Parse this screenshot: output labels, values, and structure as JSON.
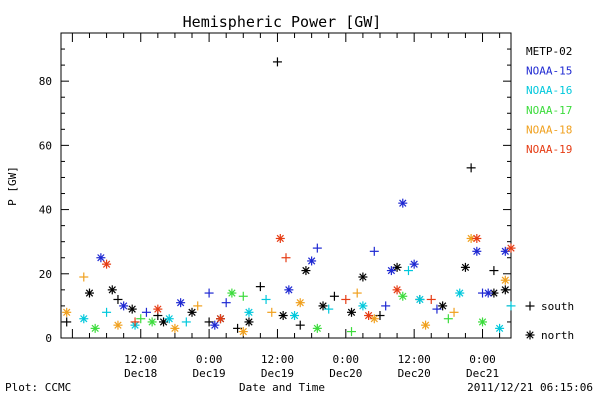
{
  "chart_data": {
    "type": "scatter",
    "title": "Hemispheric Power [GW]",
    "ylabel": "P [GW]",
    "xlabel": "Date and Time",
    "x_range": [
      "2011-12-17 22:00",
      "2011-12-21 05:00"
    ],
    "ylim": [
      0,
      95
    ],
    "y_ticks": [
      0,
      20,
      40,
      60,
      80
    ],
    "x_ticks": [
      {
        "t": "2011-12-18 12:00",
        "time": "12:00",
        "day": "Dec18"
      },
      {
        "t": "2011-12-19 00:00",
        "time": "0:00",
        "day": "Dec19"
      },
      {
        "t": "2011-12-19 12:00",
        "time": "12:00",
        "day": "Dec19"
      },
      {
        "t": "2011-12-20 00:00",
        "time": "0:00",
        "day": "Dec20"
      },
      {
        "t": "2011-12-20 12:00",
        "time": "12:00",
        "day": "Dec20"
      },
      {
        "t": "2011-12-21 00:00",
        "time": "0:00",
        "day": "Dec21"
      }
    ],
    "markers": {
      "south": "+",
      "north": "*"
    },
    "marker_legend": [
      {
        "symbol": "+",
        "label": "south"
      },
      {
        "symbol": "*",
        "label": "north"
      }
    ],
    "series": [
      {
        "name": "METP-02",
        "color": "#000000",
        "points": [
          [
            "2011-12-18 03:00",
            14,
            "north"
          ],
          [
            "2011-12-18 07:00",
            15,
            "north"
          ],
          [
            "2011-12-18 10:30",
            9,
            "north"
          ],
          [
            "2011-12-18 16:00",
            5,
            "north"
          ],
          [
            "2011-12-18 21:00",
            8,
            "north"
          ],
          [
            "2011-12-19 02:00",
            6,
            "north"
          ],
          [
            "2011-12-19 07:00",
            5,
            "north"
          ],
          [
            "2011-12-19 13:00",
            7,
            "north"
          ],
          [
            "2011-12-19 17:00",
            21,
            "north"
          ],
          [
            "2011-12-19 20:00",
            10,
            "north"
          ],
          [
            "2011-12-20 01:00",
            8,
            "north"
          ],
          [
            "2011-12-20 03:00",
            19,
            "north"
          ],
          [
            "2011-12-20 09:00",
            22,
            "north"
          ],
          [
            "2011-12-20 17:00",
            10,
            "north"
          ],
          [
            "2011-12-20 21:00",
            22,
            "north"
          ],
          [
            "2011-12-21 02:00",
            14,
            "north"
          ],
          [
            "2011-12-21 04:00",
            15,
            "north"
          ],
          [
            "2011-12-17 23:00",
            5,
            "south"
          ],
          [
            "2011-12-18 08:00",
            12,
            "south"
          ],
          [
            "2011-12-18 15:00",
            7,
            "south"
          ],
          [
            "2011-12-19 00:00",
            5,
            "south"
          ],
          [
            "2011-12-19 05:00",
            3,
            "south"
          ],
          [
            "2011-12-19 09:00",
            16,
            "south"
          ],
          [
            "2011-12-19 12:00",
            86,
            "south"
          ],
          [
            "2011-12-19 16:00",
            4,
            "south"
          ],
          [
            "2011-12-19 22:00",
            13,
            "south"
          ],
          [
            "2011-12-20 06:00",
            7,
            "south"
          ],
          [
            "2011-12-20 13:00",
            12,
            "south"
          ],
          [
            "2011-12-20 22:00",
            53,
            "south"
          ],
          [
            "2011-12-21 02:00",
            21,
            "south"
          ]
        ]
      },
      {
        "name": "NOAA-15",
        "color": "#1e28d2",
        "points": [
          [
            "2011-12-18 05:00",
            25,
            "north"
          ],
          [
            "2011-12-18 09:00",
            10,
            "north"
          ],
          [
            "2011-12-18 19:00",
            11,
            "north"
          ],
          [
            "2011-12-19 01:00",
            4,
            "north"
          ],
          [
            "2011-12-19 14:00",
            15,
            "north"
          ],
          [
            "2011-12-19 18:00",
            24,
            "north"
          ],
          [
            "2011-12-20 08:00",
            21,
            "north"
          ],
          [
            "2011-12-20 10:00",
            42,
            "north"
          ],
          [
            "2011-12-20 12:00",
            23,
            "north"
          ],
          [
            "2011-12-20 23:00",
            27,
            "north"
          ],
          [
            "2011-12-21 01:00",
            14,
            "north"
          ],
          [
            "2011-12-21 04:00",
            27,
            "north"
          ],
          [
            "2011-12-18 13:00",
            8,
            "south"
          ],
          [
            "2011-12-19 00:00",
            14,
            "south"
          ],
          [
            "2011-12-19 03:00",
            11,
            "south"
          ],
          [
            "2011-12-19 19:00",
            28,
            "south"
          ],
          [
            "2011-12-20 05:00",
            27,
            "south"
          ],
          [
            "2011-12-20 07:00",
            10,
            "south"
          ],
          [
            "2011-12-20 16:00",
            9,
            "south"
          ],
          [
            "2011-12-21 00:00",
            14,
            "south"
          ]
        ]
      },
      {
        "name": "NOAA-16",
        "color": "#00c8dc",
        "points": [
          [
            "2011-12-18 02:00",
            6,
            "north"
          ],
          [
            "2011-12-18 11:00",
            4,
            "north"
          ],
          [
            "2011-12-18 17:00",
            6,
            "north"
          ],
          [
            "2011-12-19 07:00",
            8,
            "north"
          ],
          [
            "2011-12-19 15:00",
            7,
            "north"
          ],
          [
            "2011-12-20 03:00",
            10,
            "north"
          ],
          [
            "2011-12-20 13:00",
            12,
            "north"
          ],
          [
            "2011-12-20 20:00",
            14,
            "north"
          ],
          [
            "2011-12-21 03:00",
            3,
            "north"
          ],
          [
            "2011-12-18 06:00",
            8,
            "south"
          ],
          [
            "2011-12-18 20:00",
            5,
            "south"
          ],
          [
            "2011-12-19 10:00",
            12,
            "south"
          ],
          [
            "2011-12-19 21:00",
            9,
            "south"
          ],
          [
            "2011-12-20 11:00",
            21,
            "south"
          ],
          [
            "2011-12-21 05:00",
            10,
            "south"
          ]
        ]
      },
      {
        "name": "NOAA-17",
        "color": "#3cdc3c",
        "points": [
          [
            "2011-12-18 04:00",
            3,
            "north"
          ],
          [
            "2011-12-18 14:00",
            5,
            "north"
          ],
          [
            "2011-12-19 04:00",
            14,
            "north"
          ],
          [
            "2011-12-19 19:00",
            3,
            "north"
          ],
          [
            "2011-12-20 10:00",
            13,
            "north"
          ],
          [
            "2011-12-21 00:00",
            5,
            "north"
          ],
          [
            "2011-12-18 12:00",
            6,
            "south"
          ],
          [
            "2011-12-19 06:00",
            13,
            "south"
          ],
          [
            "2011-12-20 01:00",
            2,
            "south"
          ],
          [
            "2011-12-20 18:00",
            6,
            "south"
          ]
        ]
      },
      {
        "name": "NOAA-18",
        "color": "#f0a01e",
        "points": [
          [
            "2011-12-17 23:00",
            8,
            "north"
          ],
          [
            "2011-12-18 08:00",
            4,
            "north"
          ],
          [
            "2011-12-18 18:00",
            3,
            "north"
          ],
          [
            "2011-12-19 06:00",
            2,
            "north"
          ],
          [
            "2011-12-19 16:00",
            11,
            "north"
          ],
          [
            "2011-12-20 05:00",
            6,
            "north"
          ],
          [
            "2011-12-20 14:00",
            4,
            "north"
          ],
          [
            "2011-12-20 22:00",
            31,
            "north"
          ],
          [
            "2011-12-21 04:00",
            18,
            "north"
          ],
          [
            "2011-12-18 02:00",
            19,
            "south"
          ],
          [
            "2011-12-18 22:00",
            10,
            "south"
          ],
          [
            "2011-12-19 11:00",
            8,
            "south"
          ],
          [
            "2011-12-20 02:00",
            14,
            "south"
          ],
          [
            "2011-12-20 19:00",
            8,
            "south"
          ]
        ]
      },
      {
        "name": "NOAA-19",
        "color": "#e63c14",
        "points": [
          [
            "2011-12-18 06:00",
            23,
            "north"
          ],
          [
            "2011-12-18 15:00",
            9,
            "north"
          ],
          [
            "2011-12-19 02:00",
            6,
            "north"
          ],
          [
            "2011-12-19 12:30",
            31,
            "north"
          ],
          [
            "2011-12-20 04:00",
            7,
            "north"
          ],
          [
            "2011-12-20 09:00",
            15,
            "north"
          ],
          [
            "2011-12-20 23:00",
            31,
            "north"
          ],
          [
            "2011-12-21 05:00",
            28,
            "north"
          ],
          [
            "2011-12-18 11:00",
            5,
            "south"
          ],
          [
            "2011-12-19 13:30",
            25,
            "south"
          ],
          [
            "2011-12-20 00:00",
            12,
            "south"
          ],
          [
            "2011-12-20 15:00",
            12,
            "south"
          ]
        ]
      }
    ]
  },
  "footer": {
    "left": "Plot: CCMC",
    "right": "2011/12/21 06:15:06"
  }
}
